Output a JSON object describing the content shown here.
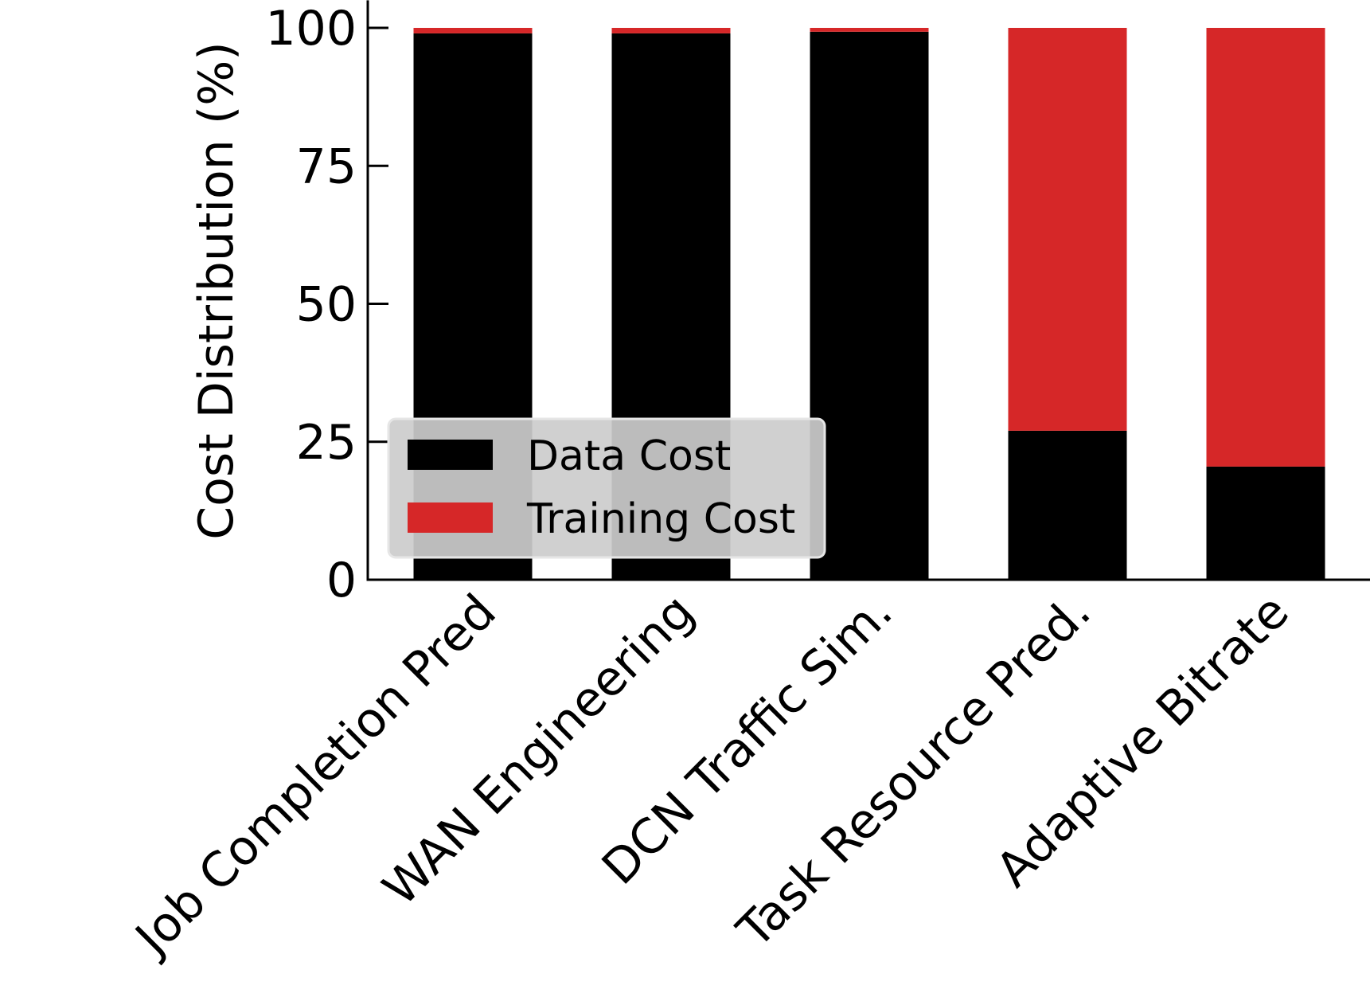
{
  "chart_data": {
    "type": "bar",
    "stacked": true,
    "title": "",
    "xlabel": "",
    "ylabel": "Cost Distribution (%)",
    "ylim": [
      0,
      105
    ],
    "yticks": [
      0,
      25,
      50,
      75,
      100
    ],
    "ytick_labels": [
      "0",
      "25",
      "50",
      "75",
      "100"
    ],
    "grid": false,
    "legend_position": "lower-left",
    "categories": [
      "Job Completion Pred",
      "WAN Engineering",
      "DCN Traffic Sim.",
      "Task Resource Pred.",
      "Adaptive Bitrate"
    ],
    "series": [
      {
        "name": "Data Cost",
        "color": "#000000",
        "values": [
          99,
          99,
          99.3,
          27,
          20.5
        ]
      },
      {
        "name": "Training Cost",
        "color": "#d62728",
        "values": [
          1,
          1,
          0.7,
          73,
          79.5
        ]
      }
    ]
  }
}
